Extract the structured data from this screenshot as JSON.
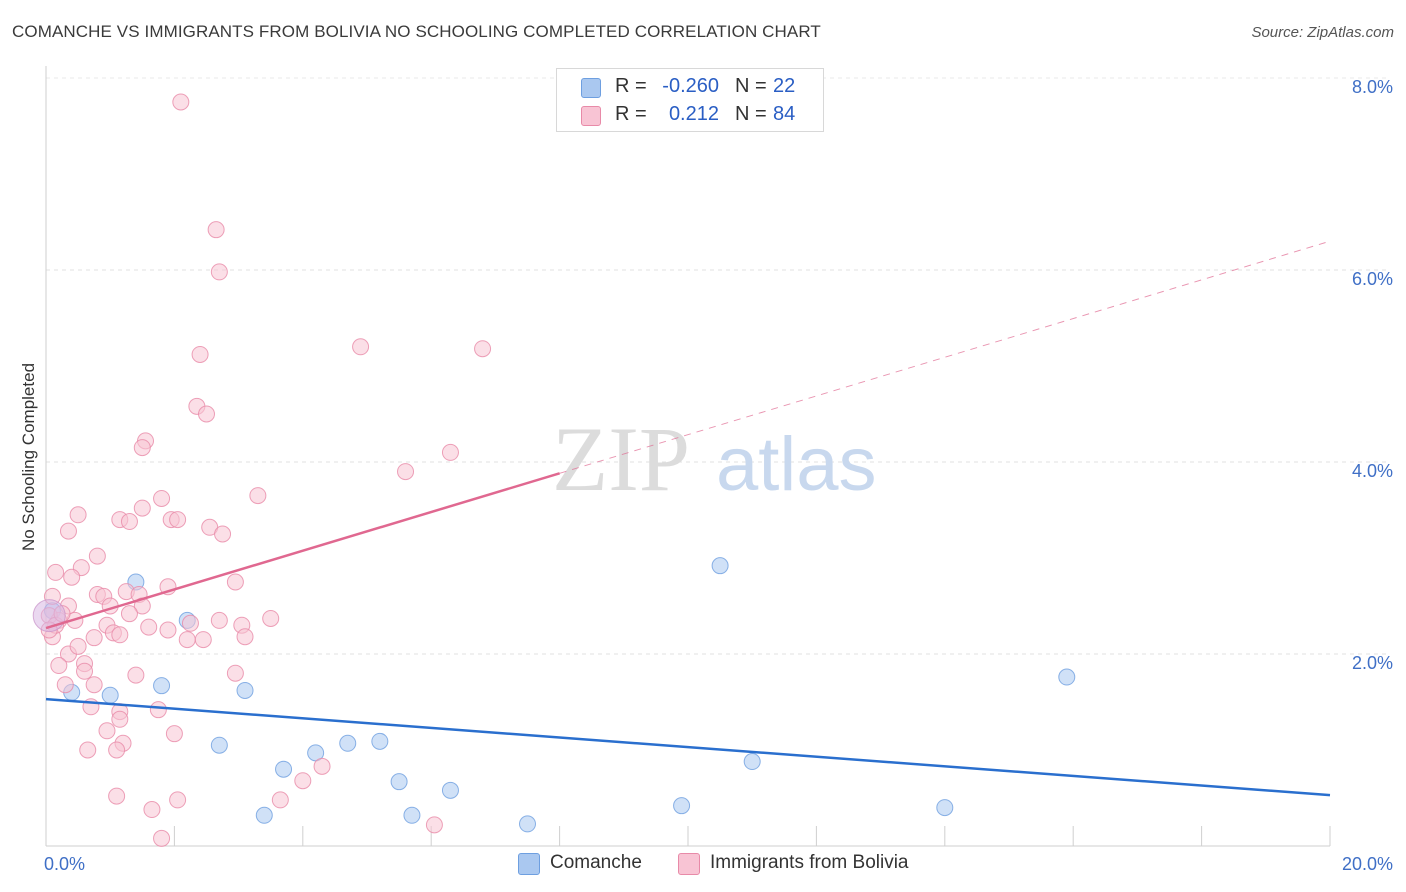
{
  "title": "COMANCHE VS IMMIGRANTS FROM BOLIVIA NO SCHOOLING COMPLETED CORRELATION CHART",
  "source": "Source: ZipAtlas.com",
  "watermark": {
    "zip": "ZIP",
    "atlas": "atlas"
  },
  "legend": [
    {
      "r_label": "R =",
      "r_value": "-0.260",
      "n_label": "N =",
      "n_value": "22",
      "color": "#aac8f0",
      "border": "#6e9fe0"
    },
    {
      "r_label": "R =",
      "r_value": "0.212",
      "n_label": "N =",
      "n_value": "84",
      "color": "#f8c4d4",
      "border": "#e88aa8"
    }
  ],
  "chart_data": {
    "type": "scatter",
    "title": "COMANCHE VS IMMIGRANTS FROM BOLIVIA NO SCHOOLING COMPLETED CORRELATION CHART",
    "xlabel": "",
    "ylabel": "No Schooling Completed",
    "xlim": [
      0,
      20
    ],
    "ylim": [
      0,
      8
    ],
    "x_tick_labels": [
      "0.0%",
      "20.0%"
    ],
    "y_tick_labels": [
      "2.0%",
      "4.0%",
      "6.0%",
      "8.0%"
    ],
    "y_ticks": [
      2,
      4,
      6,
      8
    ],
    "grid": true,
    "legend_position": "top-center",
    "series": [
      {
        "name": "Comanche",
        "color": "#6e9fe0",
        "fill": "#aac8f0",
        "trend": {
          "x": [
            0,
            20
          ],
          "y": [
            1.53,
            0.53
          ],
          "color": "#2a6fce",
          "dashed_from": null
        },
        "points": [
          [
            0.1,
            2.45
          ],
          [
            1.4,
            2.75
          ],
          [
            0.4,
            1.6
          ],
          [
            1.0,
            1.57
          ],
          [
            1.8,
            1.67
          ],
          [
            2.2,
            2.35
          ],
          [
            3.1,
            1.62
          ],
          [
            2.7,
            1.05
          ],
          [
            3.7,
            0.8
          ],
          [
            4.2,
            0.97
          ],
          [
            4.7,
            1.07
          ],
          [
            5.2,
            1.09
          ],
          [
            5.5,
            0.67
          ],
          [
            5.7,
            0.32
          ],
          [
            6.3,
            0.58
          ],
          [
            7.5,
            0.23
          ],
          [
            9.9,
            0.42
          ],
          [
            10.5,
            2.92
          ],
          [
            11.0,
            0.88
          ],
          [
            14.0,
            0.4
          ],
          [
            15.9,
            1.76
          ],
          [
            3.4,
            0.32
          ]
        ]
      },
      {
        "name": "Immigrants from Bolivia",
        "color": "#e88aa8",
        "fill": "#f8c4d4",
        "trend": {
          "x": [
            0,
            20
          ],
          "y": [
            2.27,
            6.3
          ],
          "solid_until": 8.0,
          "color": "#e06890"
        },
        "points": [
          [
            2.1,
            7.75
          ],
          [
            2.65,
            6.42
          ],
          [
            2.7,
            5.98
          ],
          [
            2.4,
            5.12
          ],
          [
            2.35,
            4.58
          ],
          [
            2.5,
            4.5
          ],
          [
            4.9,
            5.2
          ],
          [
            6.8,
            5.18
          ],
          [
            1.55,
            4.22
          ],
          [
            1.5,
            4.15
          ],
          [
            6.3,
            4.1
          ],
          [
            5.6,
            3.9
          ],
          [
            1.8,
            3.62
          ],
          [
            3.3,
            3.65
          ],
          [
            1.5,
            3.52
          ],
          [
            0.5,
            3.45
          ],
          [
            1.15,
            3.4
          ],
          [
            1.3,
            3.38
          ],
          [
            1.95,
            3.4
          ],
          [
            2.05,
            3.4
          ],
          [
            2.55,
            3.32
          ],
          [
            0.35,
            3.28
          ],
          [
            2.75,
            3.25
          ],
          [
            0.8,
            3.02
          ],
          [
            0.55,
            2.9
          ],
          [
            0.15,
            2.85
          ],
          [
            0.4,
            2.8
          ],
          [
            1.9,
            2.7
          ],
          [
            1.25,
            2.65
          ],
          [
            0.8,
            2.62
          ],
          [
            0.9,
            2.6
          ],
          [
            2.95,
            2.75
          ],
          [
            1.45,
            2.62
          ],
          [
            0.1,
            2.6
          ],
          [
            0.35,
            2.5
          ],
          [
            1.0,
            2.5
          ],
          [
            1.5,
            2.5
          ],
          [
            1.3,
            2.42
          ],
          [
            0.2,
            2.35
          ],
          [
            0.45,
            2.35
          ],
          [
            2.25,
            2.32
          ],
          [
            2.7,
            2.35
          ],
          [
            3.5,
            2.37
          ],
          [
            0.95,
            2.3
          ],
          [
            1.6,
            2.28
          ],
          [
            1.9,
            2.25
          ],
          [
            3.05,
            2.3
          ],
          [
            1.05,
            2.22
          ],
          [
            1.15,
            2.2
          ],
          [
            0.75,
            2.17
          ],
          [
            2.2,
            2.15
          ],
          [
            2.45,
            2.15
          ],
          [
            3.1,
            2.18
          ],
          [
            0.1,
            2.18
          ],
          [
            0.35,
            2.0
          ],
          [
            0.5,
            2.08
          ],
          [
            0.6,
            1.9
          ],
          [
            0.2,
            1.88
          ],
          [
            0.6,
            1.82
          ],
          [
            1.4,
            1.78
          ],
          [
            2.95,
            1.8
          ],
          [
            0.3,
            1.68
          ],
          [
            0.75,
            1.68
          ],
          [
            0.7,
            1.45
          ],
          [
            1.75,
            1.42
          ],
          [
            1.15,
            1.4
          ],
          [
            1.15,
            1.32
          ],
          [
            2.0,
            1.17
          ],
          [
            0.95,
            1.2
          ],
          [
            1.2,
            1.07
          ],
          [
            0.65,
            1.0
          ],
          [
            1.1,
            1.0
          ],
          [
            4.3,
            0.83
          ],
          [
            4.0,
            0.68
          ],
          [
            1.1,
            0.52
          ],
          [
            1.65,
            0.38
          ],
          [
            2.05,
            0.48
          ],
          [
            3.65,
            0.48
          ],
          [
            6.05,
            0.22
          ],
          [
            1.8,
            0.08
          ],
          [
            0.05,
            2.4
          ],
          [
            0.15,
            2.3
          ],
          [
            0.25,
            2.42
          ],
          [
            0.05,
            2.25
          ]
        ]
      }
    ]
  }
}
